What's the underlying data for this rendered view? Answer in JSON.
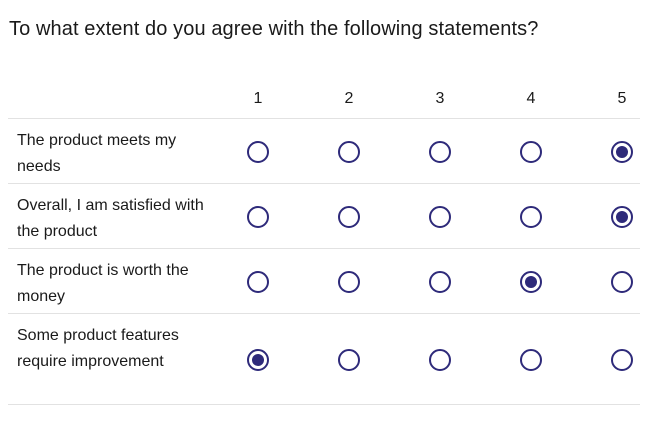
{
  "survey": {
    "question": "To what extent do you agree with the following statements?",
    "scale": [
      "1",
      "2",
      "3",
      "4",
      "5"
    ],
    "statements": [
      {
        "label": "The product meets my needs",
        "selected": "5"
      },
      {
        "label": "Overall, I am satisfied with the product",
        "selected": "5"
      },
      {
        "label": "The product is worth the money",
        "selected": "4"
      },
      {
        "label": "Some product features require improvement",
        "selected": "1"
      }
    ]
  },
  "colors": {
    "accent": "#2e2a7a",
    "divider": "#e2e2e2",
    "text": "#1a1a1a"
  }
}
